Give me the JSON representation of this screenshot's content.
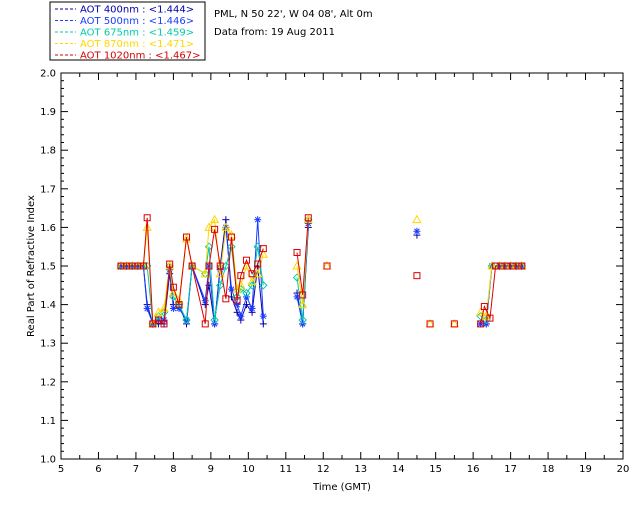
{
  "chart_data": {
    "type": "line",
    "title": "",
    "xlabel": "Time (GMT)",
    "ylabel": "Real Part of Refractive Index",
    "xlim": [
      5,
      20
    ],
    "ylim": [
      1.0,
      2.0
    ],
    "x_ticks": [
      "5",
      "6",
      "7",
      "8",
      "9",
      "10",
      "11",
      "12",
      "13",
      "14",
      "15",
      "16",
      "17",
      "18",
      "19",
      "20"
    ],
    "y_ticks": [
      "1.0",
      "1.1",
      "1.2",
      "1.3",
      "1.4",
      "1.5",
      "1.6",
      "1.7",
      "1.8",
      "1.9",
      "2.0"
    ],
    "grid": false,
    "legend_position": "top-left",
    "info_lines": [
      "PML, N 50 22', W 04 08', Alt 0m",
      "Data from: 19 Aug 2011"
    ],
    "series": [
      {
        "name": "AOT  400nm : <1.444>",
        "color": "#0000aa",
        "marker": "plus",
        "segments": [
          [
            [
              6.6,
              1.5
            ],
            [
              6.75,
              1.5
            ],
            [
              6.9,
              1.5
            ],
            [
              7.05,
              1.5
            ],
            [
              7.2,
              1.5
            ],
            [
              7.3,
              1.4
            ],
            [
              7.45,
              1.35
            ],
            [
              7.6,
              1.35
            ],
            [
              7.75,
              1.35
            ],
            [
              7.9,
              1.48
            ],
            [
              8.0,
              1.4
            ],
            [
              8.15,
              1.4
            ],
            [
              8.35,
              1.35
            ],
            [
              8.5,
              1.5
            ],
            [
              8.85,
              1.4
            ],
            [
              8.95,
              1.45
            ],
            [
              9.1,
              1.35
            ],
            [
              9.25,
              1.5
            ],
            [
              9.4,
              1.62
            ],
            [
              9.55,
              1.42
            ],
            [
              9.7,
              1.38
            ],
            [
              9.8,
              1.36
            ],
            [
              9.95,
              1.4
            ],
            [
              10.1,
              1.38
            ],
            [
              10.25,
              1.5
            ],
            [
              10.4,
              1.35
            ]
          ],
          [
            [
              11.3,
              1.43
            ],
            [
              11.45,
              1.35
            ],
            [
              11.6,
              1.6
            ]
          ],
          [
            [
              14.5,
              1.58
            ]
          ],
          [
            [
              16.2,
              1.35
            ],
            [
              16.35,
              1.35
            ],
            [
              16.5,
              1.5
            ],
            [
              16.7,
              1.5
            ],
            [
              16.85,
              1.5
            ],
            [
              17.0,
              1.5
            ],
            [
              17.15,
              1.5
            ],
            [
              17.3,
              1.5
            ]
          ]
        ]
      },
      {
        "name": "AOT  500nm : <1.446>",
        "color": "#1a3cff",
        "marker": "asterisk",
        "segments": [
          [
            [
              6.6,
              1.5
            ],
            [
              6.75,
              1.5
            ],
            [
              6.9,
              1.5
            ],
            [
              7.05,
              1.5
            ],
            [
              7.2,
              1.5
            ],
            [
              7.3,
              1.39
            ],
            [
              7.45,
              1.35
            ],
            [
              7.6,
              1.36
            ],
            [
              7.75,
              1.36
            ],
            [
              7.9,
              1.49
            ],
            [
              8.0,
              1.39
            ],
            [
              8.15,
              1.39
            ],
            [
              8.35,
              1.36
            ],
            [
              8.5,
              1.5
            ],
            [
              8.85,
              1.41
            ],
            [
              8.95,
              1.5
            ],
            [
              9.1,
              1.35
            ],
            [
              9.25,
              1.49
            ],
            [
              9.4,
              1.6
            ],
            [
              9.55,
              1.44
            ],
            [
              9.7,
              1.4
            ],
            [
              9.8,
              1.37
            ],
            [
              9.95,
              1.42
            ],
            [
              10.1,
              1.39
            ],
            [
              10.25,
              1.62
            ],
            [
              10.4,
              1.37
            ]
          ],
          [
            [
              11.3,
              1.42
            ],
            [
              11.45,
              1.35
            ],
            [
              11.6,
              1.61
            ]
          ],
          [
            [
              14.5,
              1.59
            ]
          ],
          [
            [
              16.2,
              1.35
            ],
            [
              16.35,
              1.35
            ],
            [
              16.5,
              1.5
            ],
            [
              16.7,
              1.5
            ],
            [
              16.85,
              1.5
            ],
            [
              17.0,
              1.5
            ],
            [
              17.15,
              1.5
            ],
            [
              17.3,
              1.5
            ]
          ]
        ]
      },
      {
        "name": "AOT  675nm : <1.459>",
        "color": "#00ccaa",
        "marker": "diamond",
        "segments": [
          [
            [
              6.6,
              1.5
            ],
            [
              6.75,
              1.5
            ],
            [
              6.9,
              1.5
            ],
            [
              7.05,
              1.5
            ],
            [
              7.2,
              1.5
            ],
            [
              7.3,
              1.5
            ],
            [
              7.45,
              1.35
            ],
            [
              7.6,
              1.37
            ],
            [
              7.75,
              1.38
            ],
            [
              7.9,
              1.5
            ],
            [
              8.0,
              1.42
            ],
            [
              8.15,
              1.4
            ],
            [
              8.35,
              1.36
            ],
            [
              8.5,
              1.5
            ],
            [
              8.85,
              1.48
            ],
            [
              8.95,
              1.55
            ],
            [
              9.1,
              1.36
            ],
            [
              9.25,
              1.45
            ],
            [
              9.4,
              1.5
            ],
            [
              9.55,
              1.55
            ],
            [
              9.7,
              1.42
            ],
            [
              9.8,
              1.44
            ],
            [
              9.95,
              1.43
            ],
            [
              10.1,
              1.45
            ],
            [
              10.25,
              1.55
            ],
            [
              10.4,
              1.45
            ]
          ],
          [
            [
              11.3,
              1.47
            ],
            [
              11.45,
              1.36
            ],
            [
              11.6,
              1.62
            ]
          ],
          [
            [
              16.2,
              1.37
            ],
            [
              16.35,
              1.36
            ],
            [
              16.5,
              1.5
            ],
            [
              16.7,
              1.5
            ],
            [
              16.85,
              1.5
            ],
            [
              17.0,
              1.5
            ],
            [
              17.15,
              1.5
            ],
            [
              17.3,
              1.5
            ]
          ]
        ]
      },
      {
        "name": "AOT  870nm : <1.471>",
        "color": "#ffd700",
        "marker": "triangle",
        "segments": [
          [
            [
              6.6,
              1.5
            ],
            [
              6.75,
              1.5
            ],
            [
              6.9,
              1.5
            ],
            [
              7.05,
              1.5
            ],
            [
              7.2,
              1.5
            ],
            [
              7.3,
              1.6
            ],
            [
              7.45,
              1.35
            ],
            [
              7.6,
              1.38
            ],
            [
              7.75,
              1.39
            ],
            [
              7.9,
              1.5
            ],
            [
              8.0,
              1.43
            ],
            [
              8.15,
              1.41
            ],
            [
              8.35,
              1.57
            ],
            [
              8.5,
              1.5
            ],
            [
              8.85,
              1.48
            ],
            [
              8.95,
              1.6
            ],
            [
              9.1,
              1.62
            ],
            [
              9.25,
              1.48
            ],
            [
              9.4,
              1.6
            ],
            [
              9.55,
              1.58
            ],
            [
              9.7,
              1.44
            ],
            [
              9.8,
              1.45
            ],
            [
              9.95,
              1.5
            ],
            [
              10.1,
              1.46
            ],
            [
              10.25,
              1.48
            ],
            [
              10.4,
              1.53
            ]
          ],
          [
            [
              11.3,
              1.5
            ],
            [
              11.45,
              1.4
            ],
            [
              11.6,
              1.62
            ]
          ],
          [
            [
              12.1,
              1.5
            ]
          ],
          [
            [
              14.5,
              1.62
            ]
          ],
          [
            [
              14.85,
              1.35
            ]
          ],
          [
            [
              15.5,
              1.35
            ]
          ],
          [
            [
              16.2,
              1.38
            ],
            [
              16.35,
              1.37
            ],
            [
              16.5,
              1.5
            ],
            [
              16.7,
              1.5
            ],
            [
              16.85,
              1.5
            ],
            [
              17.0,
              1.5
            ],
            [
              17.15,
              1.5
            ],
            [
              17.3,
              1.5
            ]
          ]
        ]
      },
      {
        "name": "AOT 1020nm : <1.467>",
        "color": "#dd0000",
        "marker": "square",
        "segments": [
          [
            [
              6.6,
              1.5
            ],
            [
              6.75,
              1.5
            ],
            [
              6.9,
              1.5
            ],
            [
              7.05,
              1.5
            ],
            [
              7.2,
              1.5
            ],
            [
              7.3,
              1.625
            ],
            [
              7.45,
              1.35
            ],
            [
              7.6,
              1.36
            ],
            [
              7.75,
              1.35
            ],
            [
              7.9,
              1.505
            ],
            [
              8.0,
              1.445
            ],
            [
              8.15,
              1.4
            ],
            [
              8.35,
              1.575
            ],
            [
              8.5,
              1.5
            ],
            [
              8.85,
              1.35
            ],
            [
              8.95,
              1.5
            ],
            [
              9.1,
              1.595
            ],
            [
              9.25,
              1.5
            ],
            [
              9.4,
              1.415
            ],
            [
              9.55,
              1.575
            ],
            [
              9.7,
              1.41
            ],
            [
              9.8,
              1.475
            ],
            [
              9.95,
              1.515
            ],
            [
              10.1,
              1.48
            ],
            [
              10.25,
              1.505
            ],
            [
              10.4,
              1.545
            ]
          ],
          [
            [
              11.3,
              1.535
            ],
            [
              11.45,
              1.425
            ],
            [
              11.6,
              1.625
            ]
          ],
          [
            [
              12.1,
              1.5
            ]
          ],
          [
            [
              14.5,
              1.475
            ]
          ],
          [
            [
              14.85,
              1.35
            ]
          ],
          [
            [
              15.5,
              1.35
            ]
          ],
          [
            [
              16.2,
              1.35
            ],
            [
              16.3,
              1.395
            ],
            [
              16.45,
              1.365
            ],
            [
              16.6,
              1.5
            ],
            [
              16.75,
              1.5
            ],
            [
              16.9,
              1.5
            ],
            [
              17.05,
              1.5
            ],
            [
              17.2,
              1.5
            ],
            [
              17.3,
              1.5
            ]
          ]
        ]
      }
    ]
  }
}
